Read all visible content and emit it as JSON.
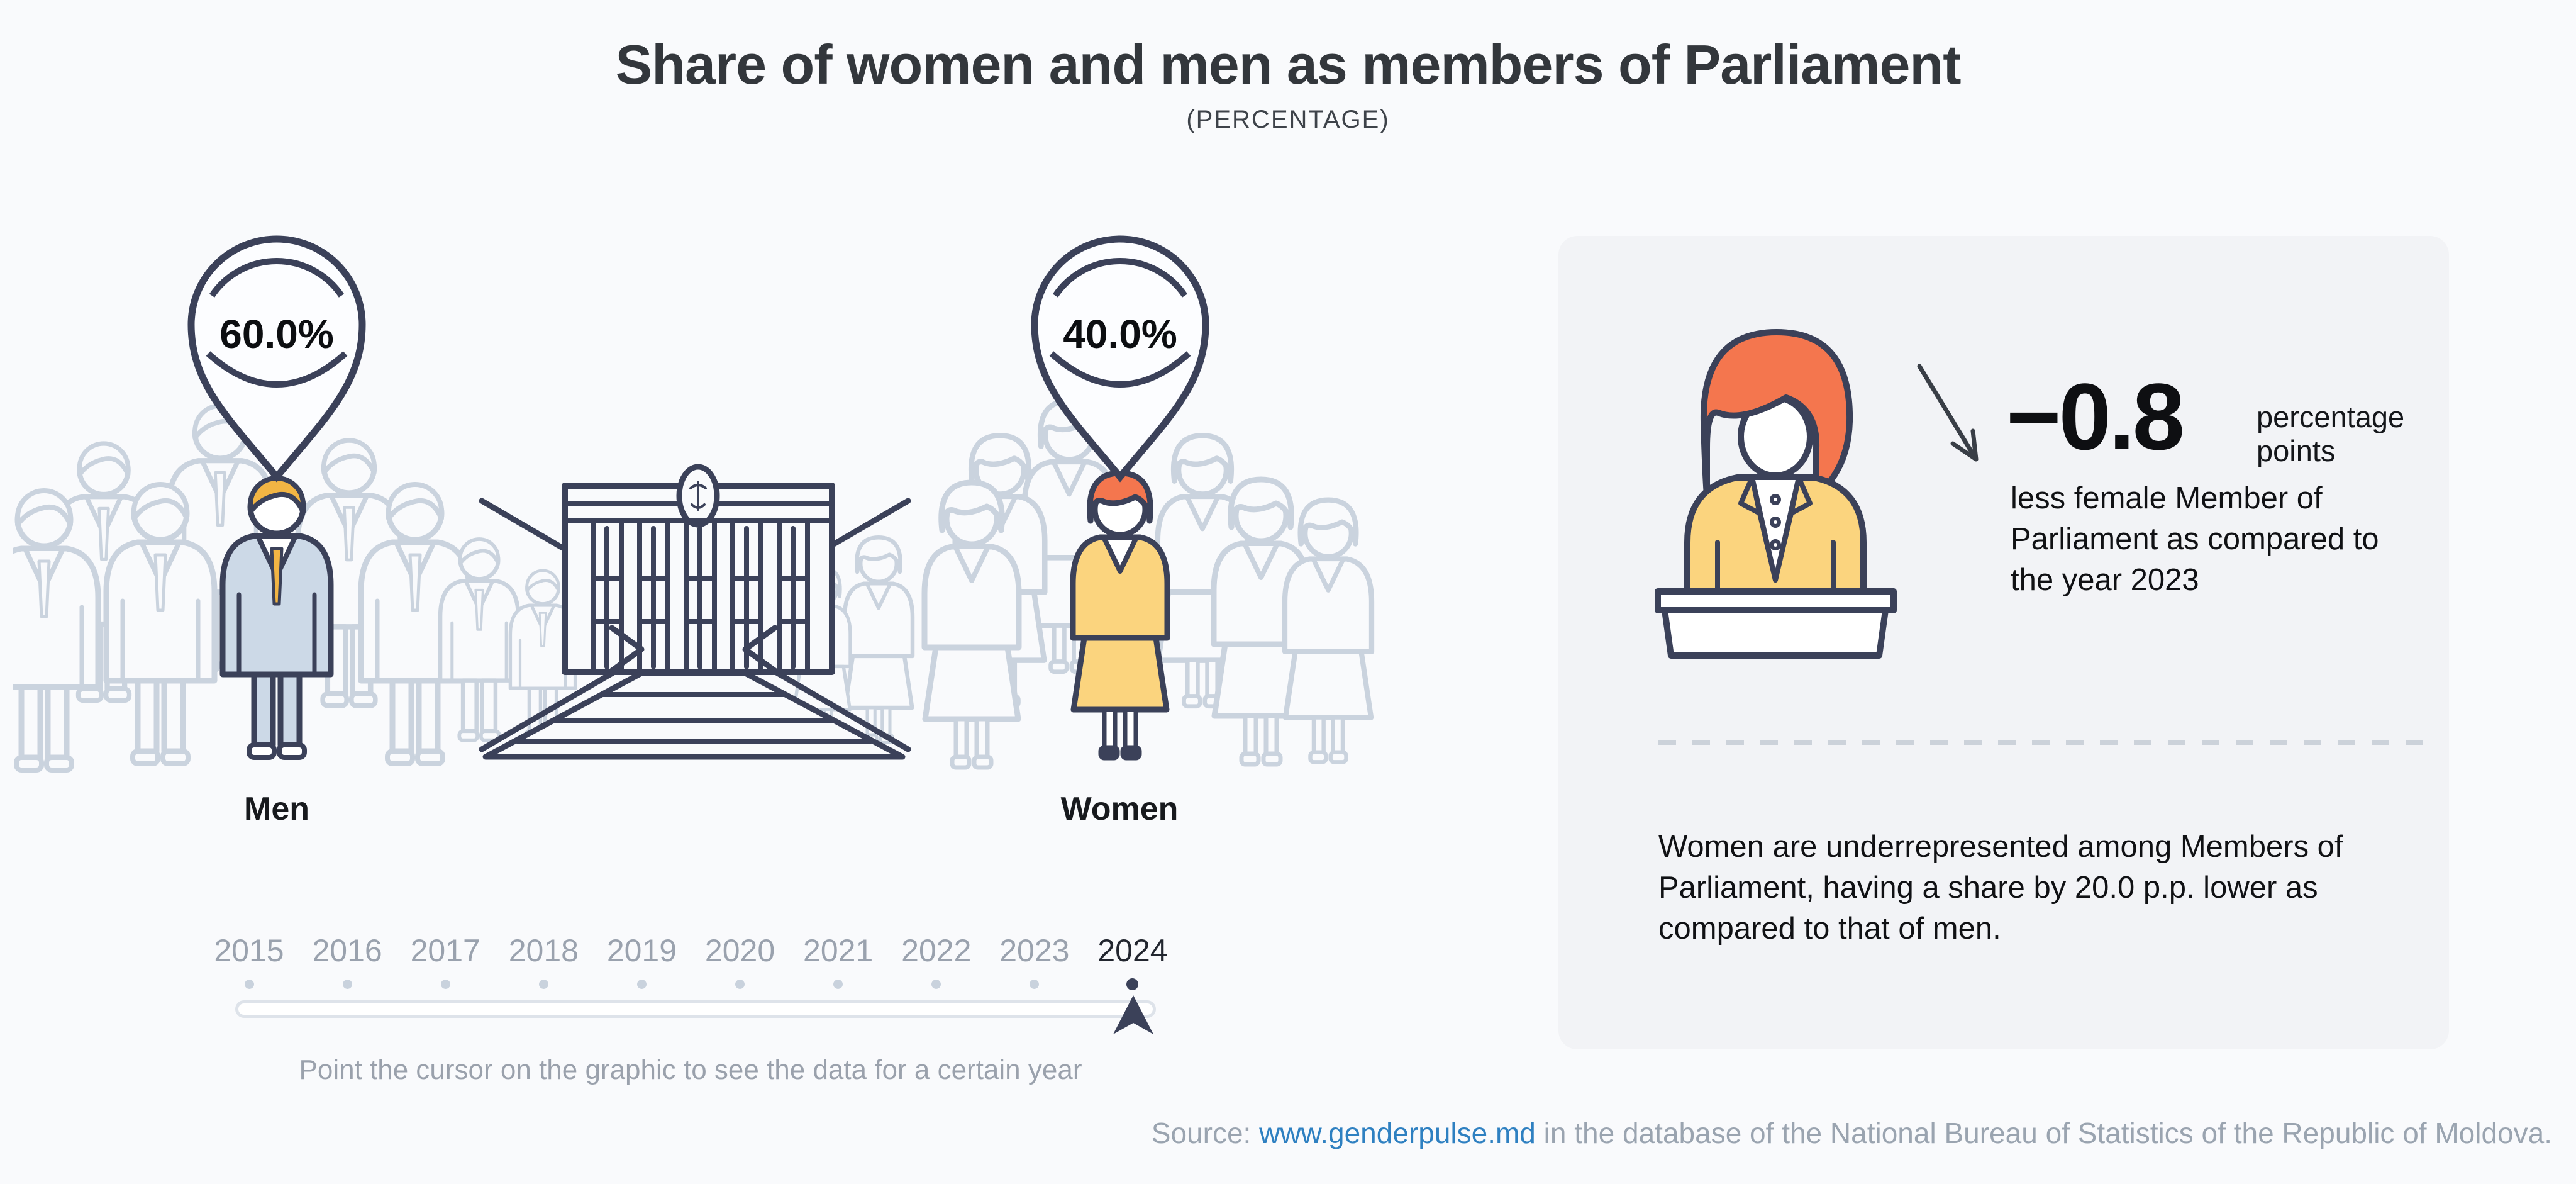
{
  "header": {
    "title": "Share of women and men as members of Parliament",
    "subtitle": "(PERCENTAGE)"
  },
  "chart_data": {
    "type": "bar",
    "title": "Share of women and men as members of Parliament",
    "unit": "percentage",
    "categories": [
      "Men",
      "Women"
    ],
    "values": [
      60.0,
      40.0
    ],
    "value_labels": [
      "60.0%",
      "40.0%"
    ],
    "ylim": [
      0,
      100
    ],
    "legend_position": "none",
    "selected_year": "2024",
    "years": [
      "2015",
      "2016",
      "2017",
      "2018",
      "2019",
      "2020",
      "2021",
      "2022",
      "2023",
      "2024"
    ],
    "change_vs_previous_year": {
      "value": -0.8,
      "unit": "percentage points",
      "reference_year": "2023"
    },
    "gender_gap_pp": 20.0
  },
  "figures": {
    "men": {
      "pin_value": "60.0%",
      "label": "Men"
    },
    "women": {
      "pin_value": "40.0%",
      "label": "Women"
    }
  },
  "timeline": {
    "years": [
      "2015",
      "2016",
      "2017",
      "2018",
      "2019",
      "2020",
      "2021",
      "2022",
      "2023",
      "2024"
    ],
    "selected": "2024",
    "hint": "Point the cursor on the graphic to see the data for a certain year"
  },
  "insight": {
    "delta_value": "−0.8",
    "delta_unit": "percentage points",
    "delta_description": "less female Member of Parliament as compared to the year 2023",
    "summary": "Women are underrepresented among Members of Parliament, having a share by 20.0 p.p. lower as compared to that of men."
  },
  "source": {
    "prefix": "Source: ",
    "link": "www.genderpulse.md",
    "suffix": " in the database of the National Bureau of Statistics of the Republic of Moldova."
  },
  "icons": {
    "location-pin-icon": "teardrop marker with percentage",
    "parliament-building-icon": "building facade with emblem and stairs",
    "man-figure-icon": "male person in suit",
    "woman-figure-icon": "female person in suit and skirt",
    "woman-at-podium-icon": "speaker behind tribune",
    "decrease-arrow-icon": "diagonal arrow pointing down-right",
    "cursor-arrow-icon": "navy upward cursor on year slider"
  },
  "colors": {
    "background": "#f9fafc",
    "card_background": "#f2f3f6",
    "outline_navy": "#3b4159",
    "silhouette_gray": "#cad3de",
    "hair_orange": "#f4764e",
    "suit_yellow": "#fbd47e",
    "suit_blue": "#ccd9e7",
    "hair_gold": "#f2b544",
    "year_gray": "#9aa2ae",
    "link_blue": "#2e80c1"
  }
}
